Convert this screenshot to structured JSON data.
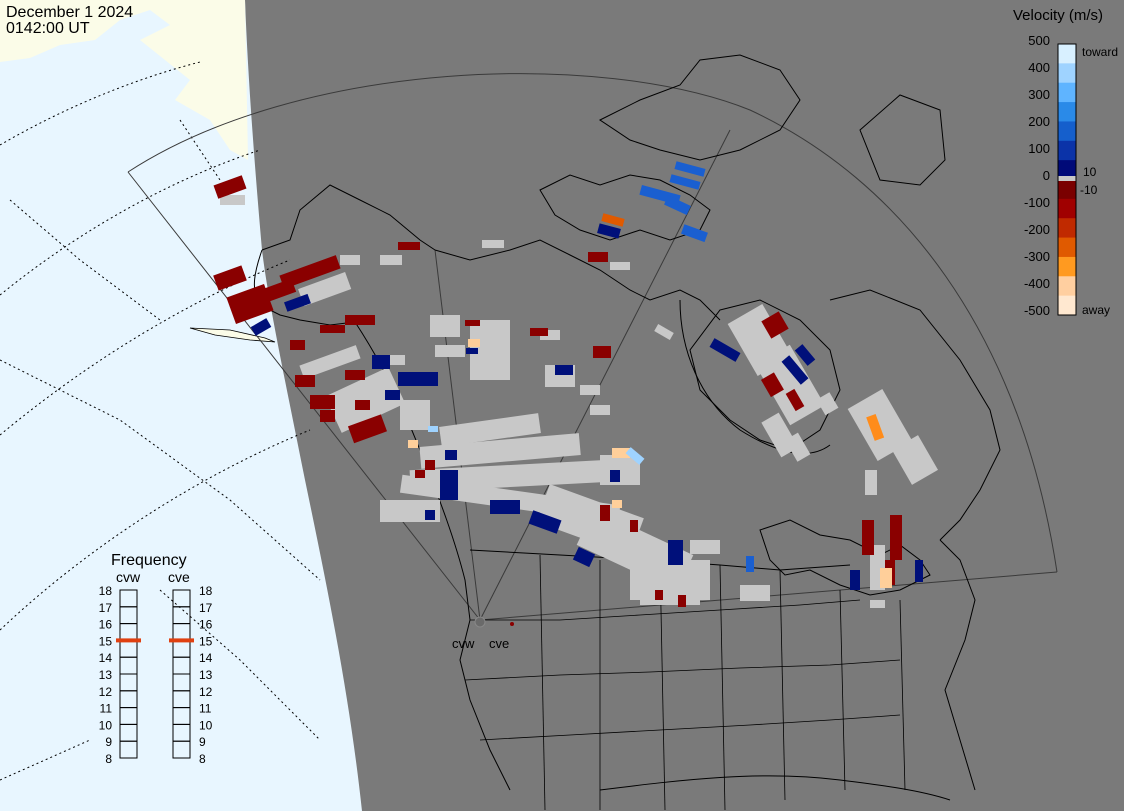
{
  "header": {
    "date": "December  1 2024",
    "time": "0142:00 UT"
  },
  "velocity_scale": {
    "title": "Velocity (m/s)",
    "ticks": [
      "500",
      "400",
      "300",
      "200",
      "100",
      "0",
      "-100",
      "-200",
      "-300",
      "-400",
      "-500"
    ],
    "inner_positive": "10",
    "inner_negative": "-10",
    "toward_label": "toward",
    "away_label": "away",
    "colors": [
      "#d8f0ff",
      "#9fd3ff",
      "#5fb4ff",
      "#2a8ae8",
      "#155fcc",
      "#0b33a8",
      "#000a78",
      "#7a0000",
      "#a00000",
      "#c02a00",
      "#e05a00",
      "#ff9a20",
      "#ffcfa0",
      "#ffe8d0"
    ],
    "ground_scatter_color": "#c8c8c8"
  },
  "frequency_panel": {
    "title": "Frequency",
    "radars": [
      {
        "name": "cvw",
        "frequency_mhz": 15
      },
      {
        "name": "cve",
        "frequency_mhz": 15
      }
    ],
    "scale": [
      "18",
      "17",
      "16",
      "15",
      "14",
      "13",
      "12",
      "11",
      "10",
      "9",
      "8"
    ],
    "marker_color": "#e04010"
  },
  "radars": [
    {
      "code": "cvw",
      "label": "cvw"
    },
    {
      "code": "cve",
      "label": "cve"
    }
  ],
  "map": {
    "ocean_color": "#e8f6ff",
    "land_color": "#7a7a7a",
    "night_land_color": "#fbfce8",
    "line_color": "#000000"
  }
}
